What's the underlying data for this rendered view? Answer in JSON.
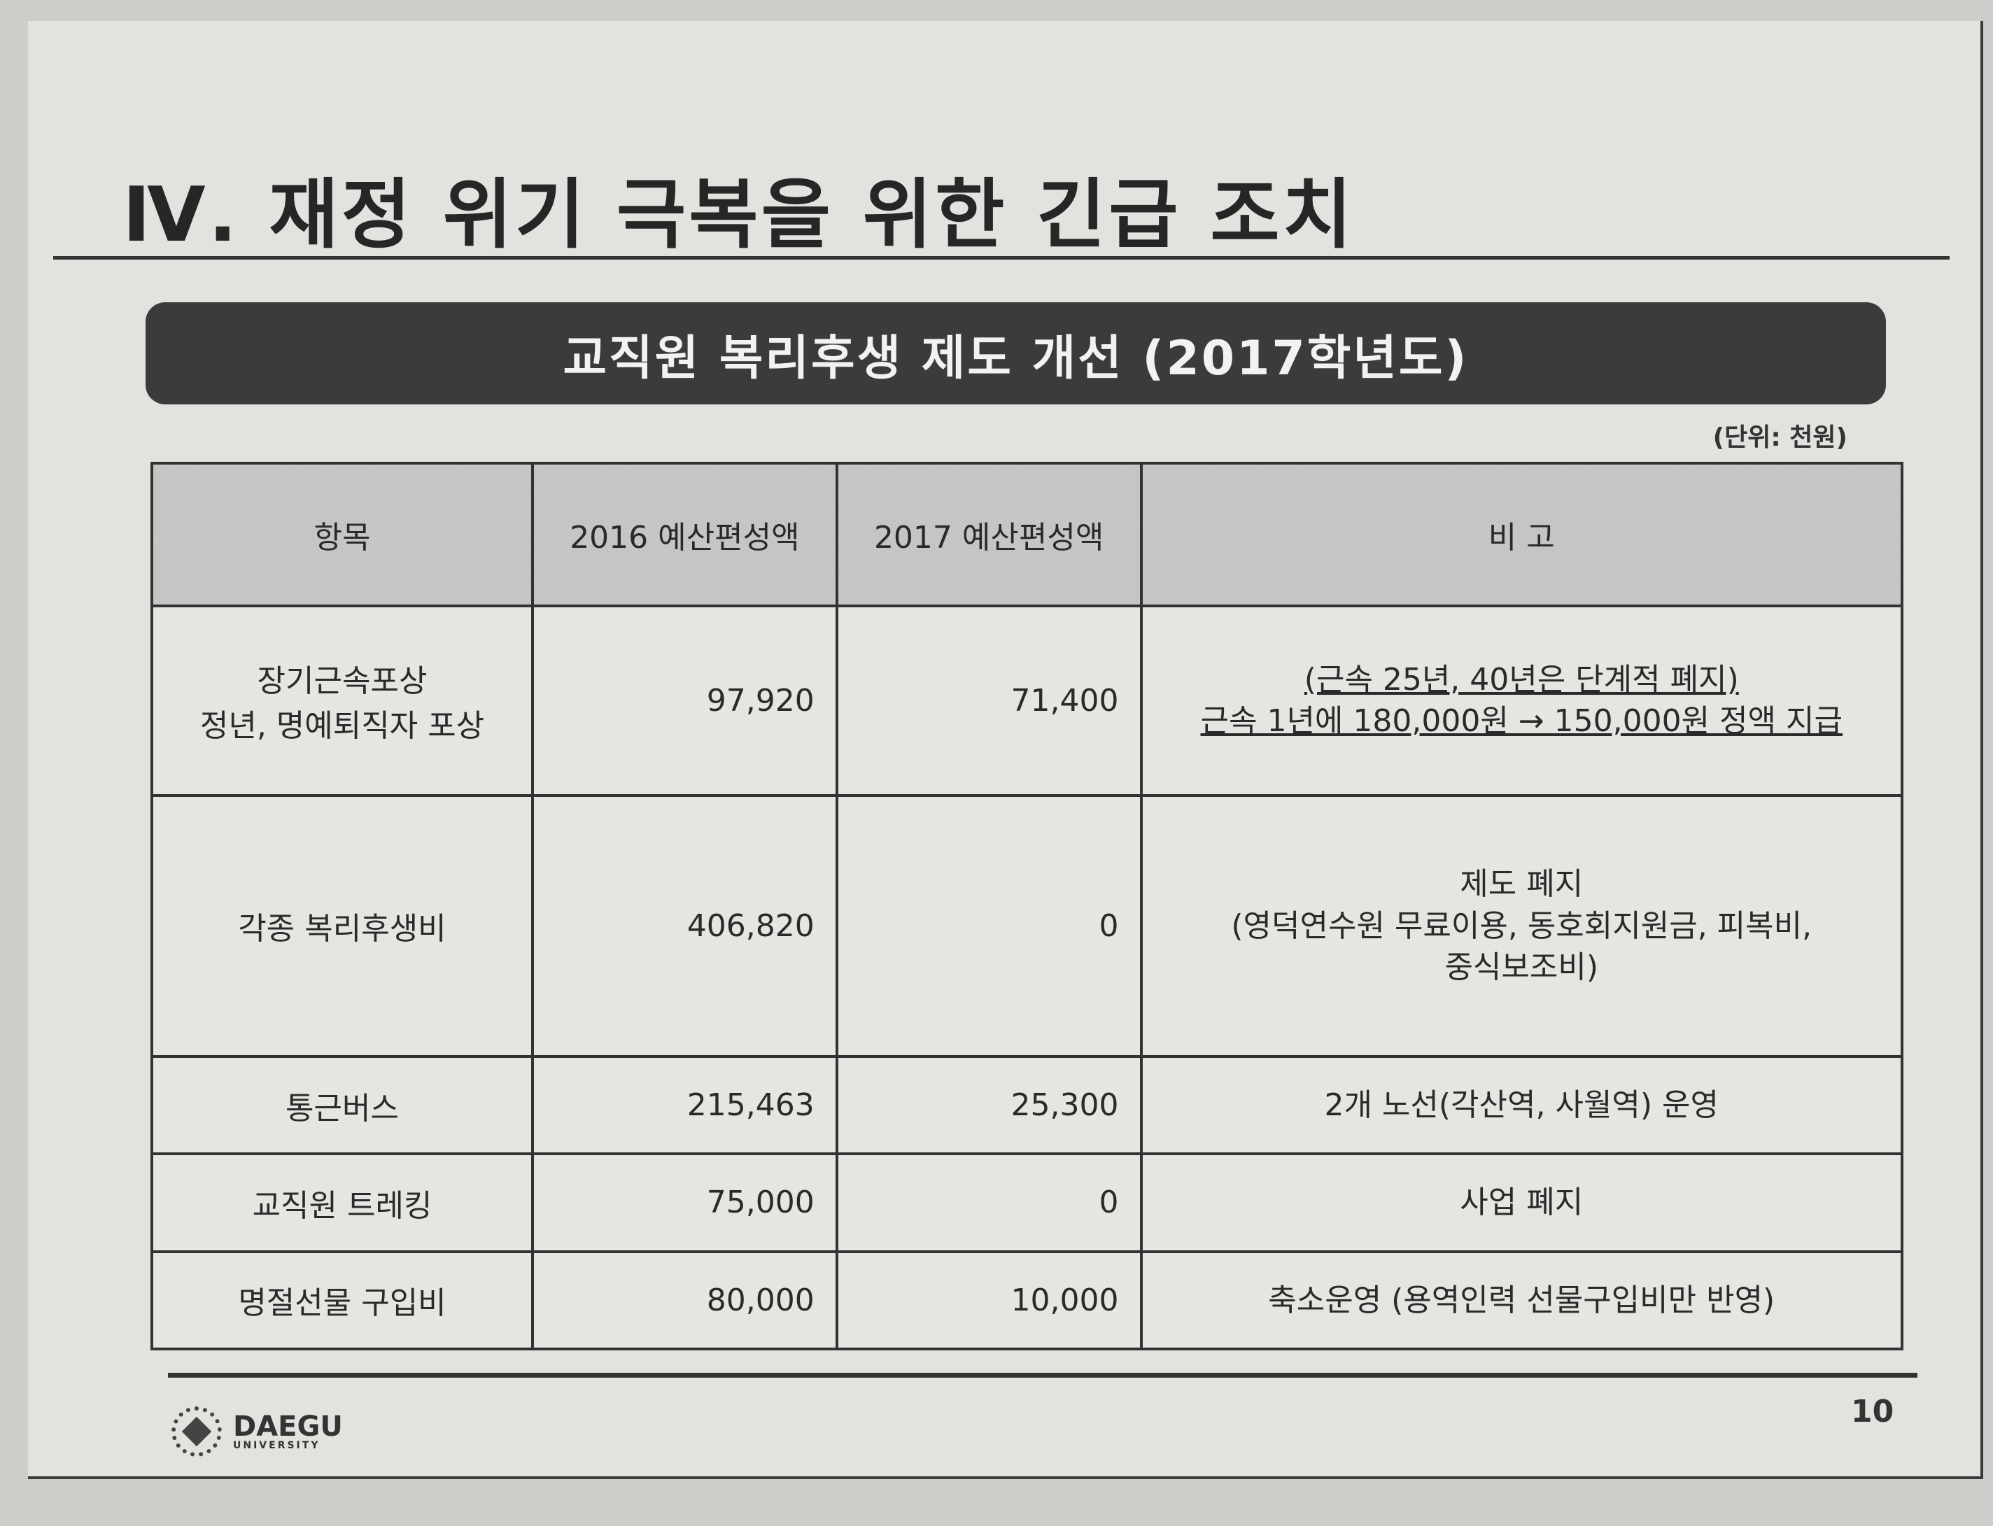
{
  "title": "Ⅳ. 재정 위기 극복을 위한 긴급 조치",
  "banner": "교직원 복리후생 제도 개선 (2017학년도)",
  "unit": "(단위: 천원)",
  "table": {
    "headers": [
      "항목",
      "2016 예산편성액",
      "2017 예산편성액",
      "비 고"
    ],
    "rows": [
      {
        "item": [
          "장기근속포상",
          "정년, 명예퇴직자 포상"
        ],
        "y2016": "97,920",
        "y2017": "71,400",
        "note": [
          "(근속 25년, 40년은 단계적 폐지)",
          "근속 1년에  180,000원 → 150,000원 정액 지급"
        ],
        "note_underlined": true
      },
      {
        "item": [
          "각종 복리후생비"
        ],
        "y2016": "406,820",
        "y2017": "0",
        "note": [
          "제도 폐지",
          "(영덕연수원 무료이용, 동호회지원금, 피복비,",
          "중식보조비)"
        ]
      },
      {
        "item": [
          "통근버스"
        ],
        "y2016": "215,463",
        "y2017": "25,300",
        "note": [
          "2개 노선(각산역, 사월역) 운영"
        ]
      },
      {
        "item": [
          "교직원 트레킹"
        ],
        "y2016": "75,000",
        "y2017": "0",
        "note": [
          "사업 폐지"
        ]
      },
      {
        "item": [
          "명절선물 구입비"
        ],
        "y2016": "80,000",
        "y2017": "10,000",
        "note": [
          "축소운영 (용역인력 선물구입비만 반영)"
        ]
      }
    ]
  },
  "footer": {
    "logo_text": "DAEGU",
    "logo_sub": "UNIVERSITY",
    "page_number": "10"
  }
}
